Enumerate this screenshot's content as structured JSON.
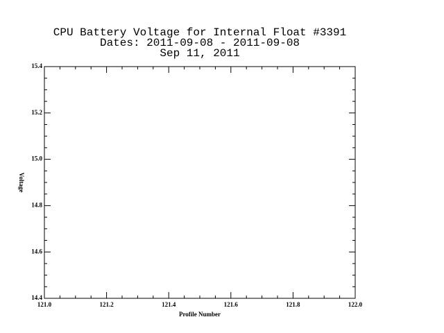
{
  "chart_data": {
    "type": "line",
    "title": [
      "CPU Battery Voltage for Internal Float #3391",
      "Dates:  2011-09-08 -  2011-09-08",
      "Sep 11, 2011"
    ],
    "xlabel": "Profile Number",
    "ylabel": "Voltage",
    "xlim": [
      121.0,
      122.0
    ],
    "xticks": [
      {
        "value": 121.0,
        "label": "121.0"
      },
      121.2,
      121.4,
      121.6,
      121.8,
      {
        "value": 122.0,
        "label": "122.0"
      }
    ],
    "ylim": [
      14.4,
      15.4
    ],
    "yticks": [
      14.4,
      14.6,
      14.8,
      {
        "value": 15.0,
        "label": "15.0"
      },
      15.2,
      15.4
    ]
  }
}
